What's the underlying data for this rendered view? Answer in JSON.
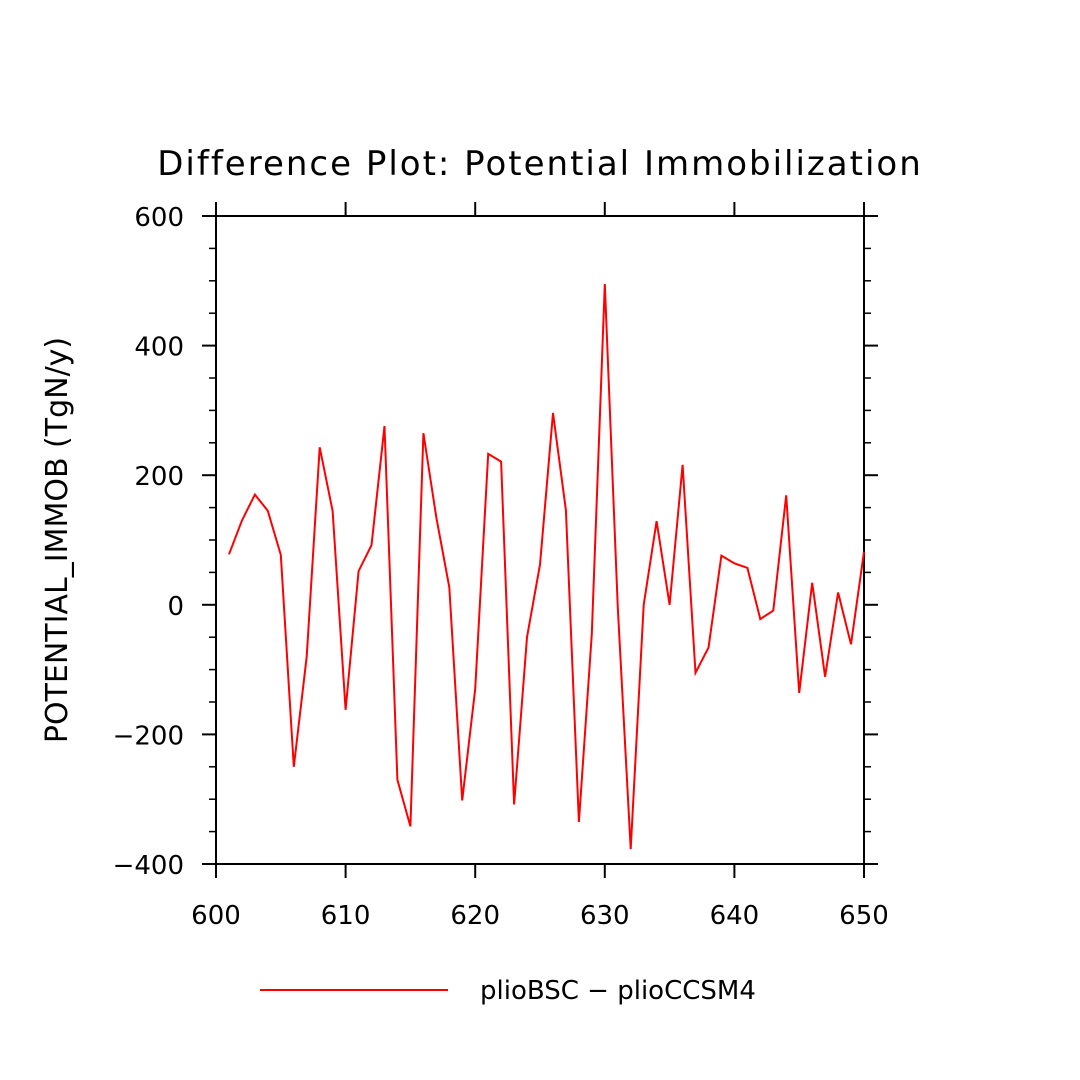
{
  "chart_data": {
    "type": "line",
    "title": "Difference Plot: Potential Immobilization",
    "xlabel": "",
    "ylabel": "POTENTIAL_IMMOB   (TgN/y)",
    "xlim": [
      600,
      650
    ],
    "ylim": [
      -400,
      600
    ],
    "x_ticks": [
      600,
      610,
      620,
      630,
      640,
      650
    ],
    "y_ticks": [
      -400,
      -200,
      0,
      200,
      400,
      600
    ],
    "x_tick_labels": [
      "600",
      "610",
      "620",
      "630",
      "640",
      "650"
    ],
    "y_tick_labels": [
      "−400",
      "−200",
      "0",
      "200",
      "400",
      "600"
    ],
    "grid": false,
    "legend_position": "bottom",
    "series": [
      {
        "name": "plioBSC − plioCCSM4",
        "color": "#ff0000",
        "x": [
          601,
          602,
          603,
          604,
          605,
          606,
          607,
          608,
          609,
          610,
          611,
          612,
          613,
          614,
          615,
          616,
          617,
          618,
          619,
          620,
          621,
          622,
          623,
          624,
          625,
          626,
          627,
          628,
          629,
          630,
          631,
          632,
          633,
          634,
          635,
          636,
          637,
          638,
          639,
          640,
          641,
          642,
          643,
          644,
          645,
          646,
          647,
          648,
          649,
          650
        ],
        "values": [
          78,
          130,
          170,
          145,
          77,
          -250,
          -80,
          243,
          145,
          -162,
          52,
          92,
          276,
          -270,
          -342,
          265,
          135,
          27,
          -302,
          -130,
          233,
          221,
          -308,
          -50,
          62,
          296,
          146,
          -335,
          -45,
          495,
          -5,
          -377,
          0,
          129,
          0,
          216,
          -105,
          -66,
          76,
          64,
          57,
          -22,
          -9,
          169,
          -136,
          34,
          -111,
          19,
          -61,
          82
        ]
      }
    ]
  }
}
